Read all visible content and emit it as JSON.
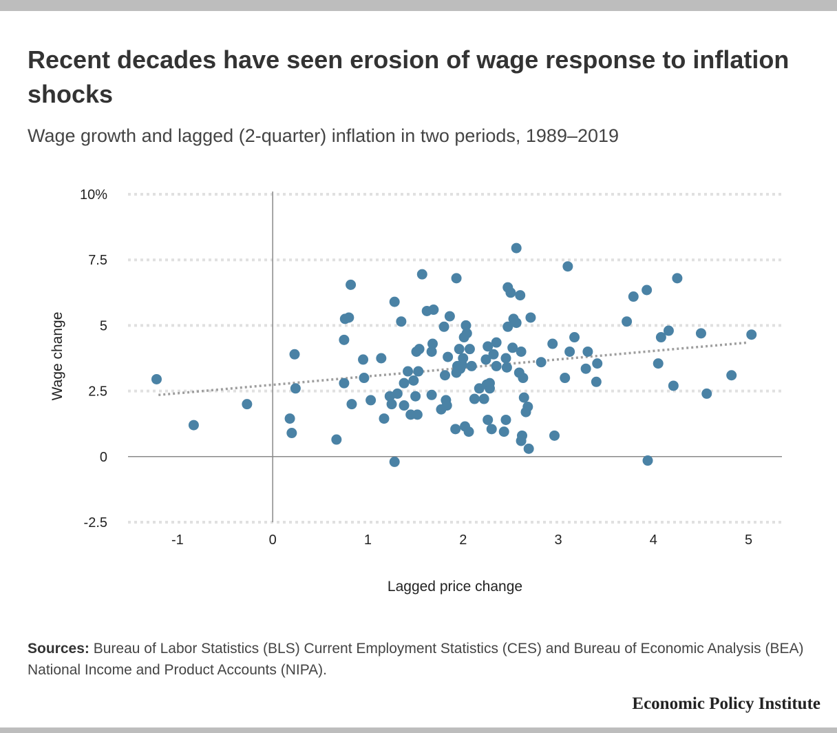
{
  "header": {
    "title": "Recent decades have seen erosion of wage response to inflation shocks",
    "subtitle": "Wage growth and lagged (2-quarter) inflation in two periods, 1989–2019"
  },
  "footer": {
    "sources_label": "Sources:",
    "sources_text": " Bureau of Labor Statistics (BLS) Current Employment Statistics (CES) and Bureau of Economic Analysis (BEA) National Income and Product Accounts (NIPA).",
    "publisher": "Economic Policy Institute"
  },
  "chart_data": {
    "type": "scatter",
    "title": "Recent decades have seen erosion of wage response to inflation shocks",
    "subtitle": "Wage growth and lagged (2-quarter) inflation in two periods, 1989–2019",
    "xlabel": "Lagged price change",
    "ylabel": "Wage change",
    "xlim": [
      -1.52,
      5.35
    ],
    "ylim": [
      -2.5,
      10
    ],
    "x_ticks": [
      -1,
      0,
      1,
      2,
      3,
      4,
      5
    ],
    "x_tick_labels": [
      "-1",
      "0",
      "1",
      "2",
      "3",
      "4",
      "5"
    ],
    "y_ticks": [
      -2.5,
      0,
      2.5,
      5,
      7.5,
      10
    ],
    "y_tick_labels": [
      "-2.5",
      "0",
      "2.5",
      "5",
      "7.5",
      "10%"
    ],
    "grid": true,
    "colors": {
      "points": "#4a82a5",
      "trend": "#9e9e9e",
      "grid": "#e0e0e0",
      "axis": "#888888"
    },
    "trendline": {
      "x": [
        -1.2,
        5.0
      ],
      "y": [
        2.35,
        4.35
      ]
    },
    "points": [
      [
        -1.22,
        2.95
      ],
      [
        -0.83,
        1.2
      ],
      [
        -0.27,
        2.0
      ],
      [
        0.18,
        1.45
      ],
      [
        0.2,
        0.9
      ],
      [
        0.23,
        3.9
      ],
      [
        0.24,
        2.6
      ],
      [
        0.67,
        0.65
      ],
      [
        0.75,
        2.8
      ],
      [
        0.75,
        4.45
      ],
      [
        0.76,
        5.25
      ],
      [
        0.8,
        5.3
      ],
      [
        0.82,
        6.55
      ],
      [
        0.83,
        2.0
      ],
      [
        0.95,
        3.7
      ],
      [
        0.96,
        3.0
      ],
      [
        1.03,
        2.15
      ],
      [
        1.14,
        3.75
      ],
      [
        1.17,
        1.45
      ],
      [
        1.23,
        2.3
      ],
      [
        1.25,
        2.0
      ],
      [
        1.28,
        5.9
      ],
      [
        1.28,
        -0.2
      ],
      [
        1.31,
        2.4
      ],
      [
        1.35,
        5.15
      ],
      [
        1.38,
        1.95
      ],
      [
        1.38,
        2.8
      ],
      [
        1.42,
        3.25
      ],
      [
        1.45,
        1.6
      ],
      [
        1.48,
        2.9
      ],
      [
        1.5,
        2.3
      ],
      [
        1.51,
        4.0
      ],
      [
        1.52,
        1.6
      ],
      [
        1.53,
        3.25
      ],
      [
        1.54,
        4.1
      ],
      [
        1.57,
        6.95
      ],
      [
        1.62,
        5.55
      ],
      [
        1.67,
        4.0
      ],
      [
        1.67,
        2.35
      ],
      [
        1.68,
        4.3
      ],
      [
        1.69,
        5.6
      ],
      [
        1.77,
        1.8
      ],
      [
        1.8,
        4.95
      ],
      [
        1.81,
        3.1
      ],
      [
        1.82,
        2.15
      ],
      [
        1.83,
        1.95
      ],
      [
        1.84,
        3.8
      ],
      [
        1.86,
        5.35
      ],
      [
        1.92,
        1.05
      ],
      [
        1.93,
        3.2
      ],
      [
        1.93,
        6.8
      ],
      [
        1.94,
        3.45
      ],
      [
        1.96,
        4.1
      ],
      [
        1.97,
        3.35
      ],
      [
        1.99,
        3.5
      ],
      [
        2.0,
        3.75
      ],
      [
        2.01,
        4.55
      ],
      [
        2.02,
        1.15
      ],
      [
        2.03,
        5.0
      ],
      [
        2.04,
        4.7
      ],
      [
        2.06,
        0.95
      ],
      [
        2.07,
        4.1
      ],
      [
        2.09,
        3.45
      ],
      [
        2.12,
        2.2
      ],
      [
        2.17,
        2.6
      ],
      [
        2.22,
        2.2
      ],
      [
        2.24,
        3.7
      ],
      [
        2.25,
        2.75
      ],
      [
        2.26,
        4.2
      ],
      [
        2.26,
        1.4
      ],
      [
        2.28,
        2.6
      ],
      [
        2.28,
        2.8
      ],
      [
        2.3,
        1.05
      ],
      [
        2.32,
        3.9
      ],
      [
        2.35,
        3.45
      ],
      [
        2.35,
        4.35
      ],
      [
        2.43,
        0.95
      ],
      [
        2.45,
        1.4
      ],
      [
        2.45,
        3.75
      ],
      [
        2.46,
        3.4
      ],
      [
        2.47,
        4.95
      ],
      [
        2.47,
        6.45
      ],
      [
        2.5,
        6.25
      ],
      [
        2.52,
        4.15
      ],
      [
        2.53,
        5.25
      ],
      [
        2.56,
        5.1
      ],
      [
        2.56,
        7.95
      ],
      [
        2.59,
        3.2
      ],
      [
        2.6,
        6.15
      ],
      [
        2.61,
        0.6
      ],
      [
        2.61,
        4.0
      ],
      [
        2.62,
        0.8
      ],
      [
        2.63,
        3.0
      ],
      [
        2.64,
        2.25
      ],
      [
        2.66,
        1.7
      ],
      [
        2.68,
        1.9
      ],
      [
        2.69,
        0.3
      ],
      [
        2.71,
        5.3
      ],
      [
        2.82,
        3.6
      ],
      [
        2.94,
        4.3
      ],
      [
        2.96,
        0.8
      ],
      [
        3.07,
        3.0
      ],
      [
        3.1,
        7.25
      ],
      [
        3.12,
        4.0
      ],
      [
        3.17,
        4.55
      ],
      [
        3.29,
        3.35
      ],
      [
        3.31,
        4.0
      ],
      [
        3.4,
        2.85
      ],
      [
        3.41,
        3.55
      ],
      [
        3.72,
        5.15
      ],
      [
        3.79,
        6.1
      ],
      [
        3.93,
        6.35
      ],
      [
        3.94,
        -0.15
      ],
      [
        4.05,
        3.55
      ],
      [
        4.08,
        4.55
      ],
      [
        4.16,
        4.8
      ],
      [
        4.21,
        2.7
      ],
      [
        4.25,
        6.8
      ],
      [
        4.5,
        4.7
      ],
      [
        4.56,
        2.4
      ],
      [
        4.82,
        3.1
      ],
      [
        5.03,
        4.65
      ]
    ]
  }
}
